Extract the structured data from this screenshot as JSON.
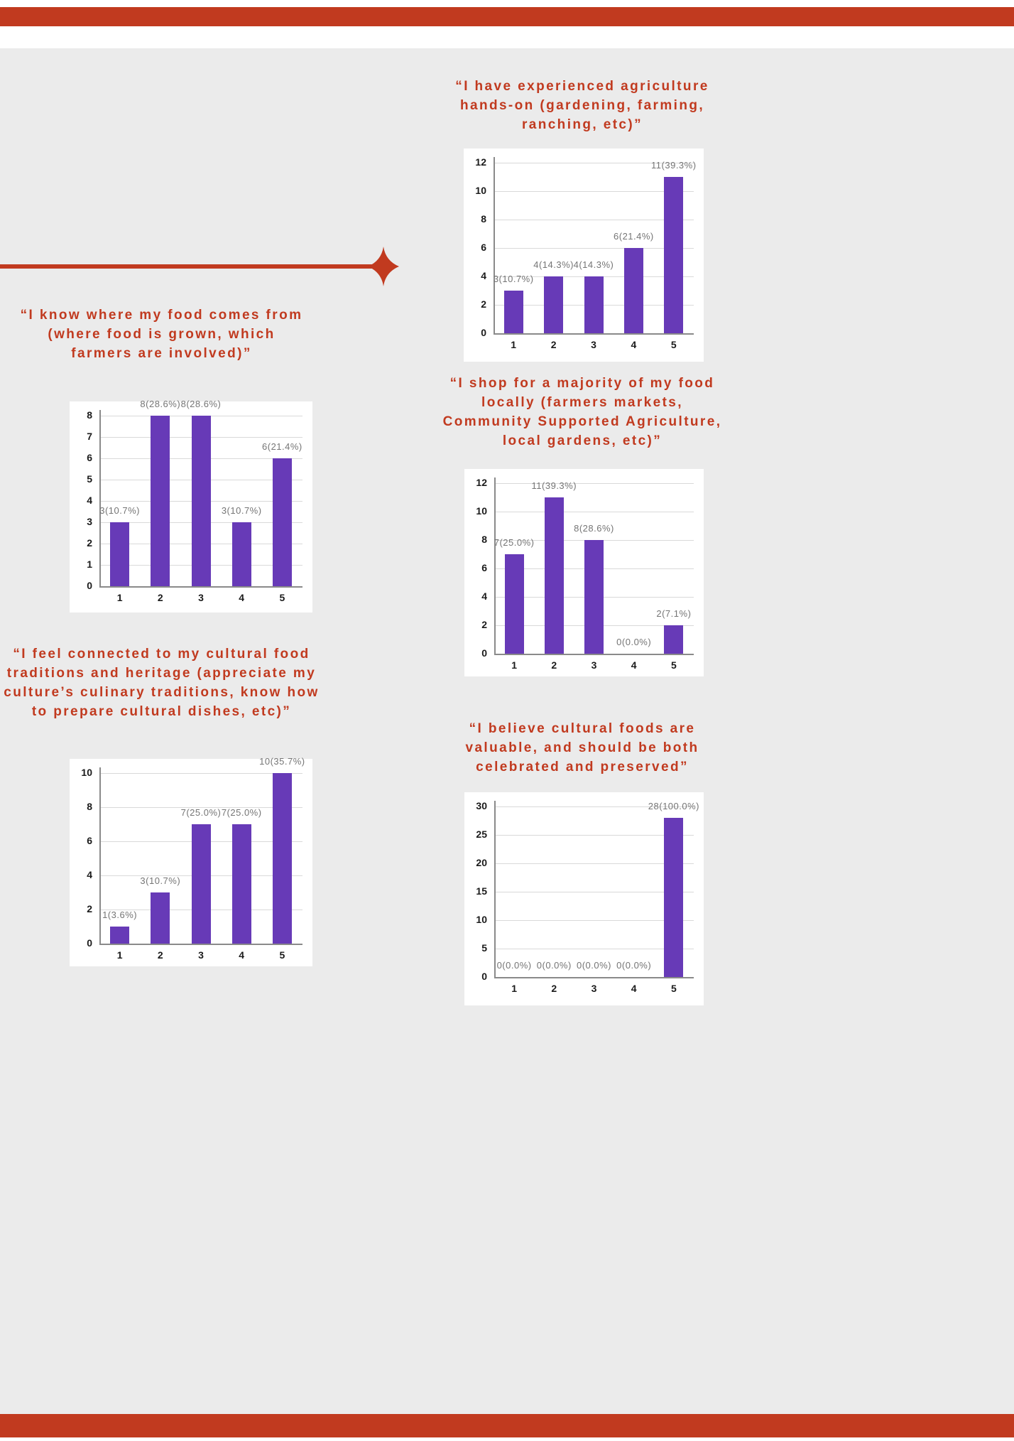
{
  "colors": {
    "accent": "#c13a1f",
    "background_gray": "#ebebeb",
    "bar_purple": "#673ab7",
    "value_label_gray": "#757575",
    "gridline": "#d9d9d9",
    "axis": "#8a8a8a"
  },
  "decor": {
    "top_bar": "red-accent-bar",
    "bottom_bar": "red-accent-bar",
    "divider": "horizontal-line-with-four-point-star"
  },
  "chart_data": [
    {
      "type": "bar",
      "title": "“I have experienced agriculture hands-on (gardening, farming, ranching, etc)”",
      "heading_lines": [
        "“I have experienced agriculture",
        "hands-on (gardening, farming,",
        "ranching, etc)”"
      ],
      "categories": [
        "1",
        "2",
        "3",
        "4",
        "5"
      ],
      "values": [
        3,
        4,
        4,
        6,
        11
      ],
      "value_labels": [
        "3(10.7%)",
        "4(14.3%)",
        "4(14.3%)",
        "6(21.4%)",
        "11(39.3%)"
      ],
      "ylim": [
        0,
        12
      ],
      "yticks": [
        0,
        2,
        4,
        6,
        8,
        10,
        12
      ],
      "grid": true,
      "legend": false
    },
    {
      "type": "bar",
      "title": "“I know where my food comes from (where food is grown, which farmers are involved)”",
      "heading_lines": [
        "“I know where my food comes from",
        "(where food is grown, which",
        "farmers are involved)”"
      ],
      "categories": [
        "1",
        "2",
        "3",
        "4",
        "5"
      ],
      "values": [
        3,
        8,
        8,
        3,
        6
      ],
      "value_labels": [
        "3(10.7%)",
        "8(28.6%)",
        "8(28.6%)",
        "3(10.7%)",
        "6(21.4%)"
      ],
      "ylim": [
        0,
        8
      ],
      "yticks": [
        0,
        1,
        2,
        3,
        4,
        5,
        6,
        7,
        8
      ],
      "grid": true,
      "legend": false
    },
    {
      "type": "bar",
      "title": "“I shop for a majority of my food locally (farmers markets, Community Supported Agriculture, local gardens, etc)”",
      "heading_lines": [
        "“I shop for a majority of my food",
        "locally (farmers markets,",
        "Community Supported Agriculture,",
        "local gardens, etc)”"
      ],
      "categories": [
        "1",
        "2",
        "3",
        "4",
        "5"
      ],
      "values": [
        7,
        11,
        8,
        0,
        2
      ],
      "value_labels": [
        "7(25.0%)",
        "11(39.3%)",
        "8(28.6%)",
        "0(0.0%)",
        "2(7.1%)"
      ],
      "ylim": [
        0,
        12
      ],
      "yticks": [
        0,
        2,
        4,
        6,
        8,
        10,
        12
      ],
      "grid": true,
      "legend": false
    },
    {
      "type": "bar",
      "title": "“I feel connected to my cultural food traditions and heritage (appreciate my culture’s culinary traditions, know how to prepare cultural dishes, etc)”",
      "heading_lines": [
        "“I feel connected to my cultural food",
        "traditions and heritage (appreciate my",
        "culture’s culinary traditions, know how",
        "to prepare cultural dishes, etc)”"
      ],
      "categories": [
        "1",
        "2",
        "3",
        "4",
        "5"
      ],
      "values": [
        1,
        3,
        7,
        7,
        10
      ],
      "value_labels": [
        "1(3.6%)",
        "3(10.7%)",
        "7(25.0%)",
        "7(25.0%)",
        "10(35.7%)"
      ],
      "ylim": [
        0,
        10
      ],
      "yticks": [
        0,
        2,
        4,
        6,
        8,
        10
      ],
      "grid": true,
      "legend": false
    },
    {
      "type": "bar",
      "title": "“I believe cultural foods are valuable, and should be both celebrated and preserved”",
      "heading_lines": [
        "“I believe cultural foods are",
        "valuable, and should be both",
        "celebrated and preserved”"
      ],
      "categories": [
        "1",
        "2",
        "3",
        "4",
        "5"
      ],
      "values": [
        0,
        0,
        0,
        0,
        28
      ],
      "value_labels": [
        "0(0.0%)",
        "0(0.0%)",
        "0(0.0%)",
        "0(0.0%)",
        "28(100.0%)"
      ],
      "ylim": [
        0,
        30
      ],
      "yticks": [
        0,
        5,
        10,
        15,
        20,
        25,
        30
      ],
      "grid": true,
      "legend": false
    }
  ]
}
